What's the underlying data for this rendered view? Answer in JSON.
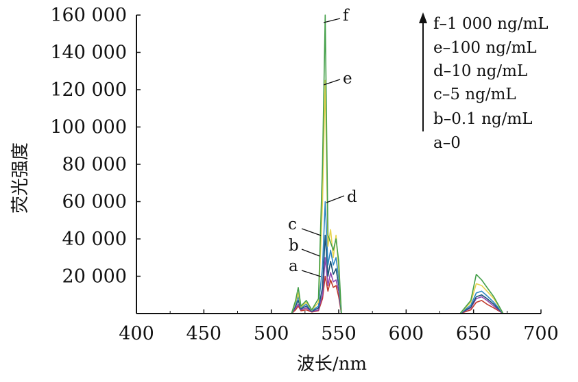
{
  "chart_data": {
    "type": "line",
    "xlabel": "波长/nm",
    "ylabel": "荧光强度",
    "xlim": [
      400,
      700
    ],
    "ylim": [
      0,
      160000
    ],
    "x_ticks": [
      400,
      450,
      500,
      550,
      600,
      650,
      700
    ],
    "y_ticks": [
      20000,
      40000,
      60000,
      80000,
      100000,
      120000,
      140000,
      160000
    ],
    "y_tick_labels": [
      "20 000",
      "40 000",
      "60 000",
      "80 000",
      "100 000",
      "120 000",
      "140 000",
      "160 000"
    ],
    "grid": false,
    "legend_position": "top-right",
    "legend": [
      "f–1 000 ng/mL",
      "e–100 ng/mL",
      "d–10 ng/mL",
      "c–5 ng/mL",
      "b–0.1 ng/mL",
      "a–0"
    ],
    "series": [
      {
        "tag": "a",
        "color": "#c0392b",
        "x": [
          400,
          515,
          518,
          520,
          522,
          526,
          530,
          535,
          538,
          540,
          542,
          544,
          546,
          548,
          550,
          552,
          560,
          640,
          648,
          652,
          656,
          660,
          665,
          672,
          700
        ],
        "y": [
          0,
          0,
          2000,
          4000,
          1500,
          2000,
          800,
          1500,
          8000,
          20000,
          12000,
          18000,
          14000,
          15000,
          9000,
          0,
          0,
          0,
          2000,
          6000,
          7000,
          5000,
          3000,
          0,
          0
        ]
      },
      {
        "tag": "b",
        "color": "#8e44ad",
        "x": [
          400,
          515,
          518,
          520,
          522,
          526,
          530,
          535,
          538,
          540,
          542,
          544,
          546,
          548,
          550,
          552,
          560,
          640,
          648,
          652,
          656,
          660,
          665,
          672,
          700
        ],
        "y": [
          0,
          0,
          3000,
          5000,
          2000,
          3000,
          1000,
          2000,
          10000,
          30000,
          15000,
          22000,
          17000,
          18000,
          12000,
          0,
          0,
          0,
          3000,
          8000,
          9000,
          7000,
          4000,
          0,
          0
        ]
      },
      {
        "tag": "c",
        "color": "#1a5276",
        "x": [
          400,
          515,
          518,
          520,
          522,
          526,
          530,
          535,
          538,
          540,
          542,
          544,
          546,
          548,
          550,
          552,
          560,
          640,
          648,
          652,
          656,
          660,
          665,
          672,
          700
        ],
        "y": [
          0,
          0,
          4000,
          7000,
          2500,
          4000,
          1200,
          3000,
          14000,
          42000,
          20000,
          28000,
          21000,
          24000,
          15000,
          0,
          0,
          0,
          3500,
          9000,
          10000,
          8000,
          5000,
          0,
          0
        ]
      },
      {
        "tag": "d",
        "color": "#2e86c1",
        "x": [
          400,
          515,
          518,
          520,
          522,
          526,
          530,
          535,
          538,
          540,
          542,
          544,
          546,
          548,
          550,
          552,
          560,
          640,
          648,
          652,
          656,
          660,
          665,
          672,
          700
        ],
        "y": [
          0,
          0,
          5000,
          9000,
          3000,
          5000,
          1500,
          4000,
          25000,
          60000,
          26000,
          34000,
          26000,
          30000,
          19000,
          0,
          0,
          0,
          4500,
          11000,
          12000,
          9500,
          6000,
          0,
          0
        ]
      },
      {
        "tag": "e",
        "color": "#e8d44d",
        "x": [
          400,
          515,
          518,
          520,
          522,
          526,
          530,
          535,
          538,
          540,
          542,
          544,
          546,
          548,
          550,
          552,
          560,
          640,
          648,
          652,
          656,
          660,
          665,
          672,
          700
        ],
        "y": [
          0,
          0,
          6000,
          11000,
          3500,
          6000,
          1800,
          6000,
          60000,
          125000,
          36000,
          45000,
          30000,
          42000,
          24000,
          0,
          0,
          0,
          6000,
          16000,
          15000,
          12000,
          8000,
          0,
          0
        ]
      },
      {
        "tag": "f",
        "color": "#45a04a",
        "x": [
          400,
          515,
          518,
          520,
          522,
          526,
          530,
          535,
          538,
          540,
          542,
          544,
          546,
          548,
          550,
          552,
          560,
          640,
          648,
          652,
          656,
          660,
          665,
          672,
          700
        ],
        "y": [
          0,
          0,
          7000,
          14000,
          4000,
          7000,
          2000,
          8000,
          80000,
          160000,
          42000,
          38000,
          34000,
          40000,
          28000,
          0,
          0,
          0,
          7000,
          21000,
          18000,
          14000,
          9000,
          0,
          0
        ]
      }
    ]
  }
}
